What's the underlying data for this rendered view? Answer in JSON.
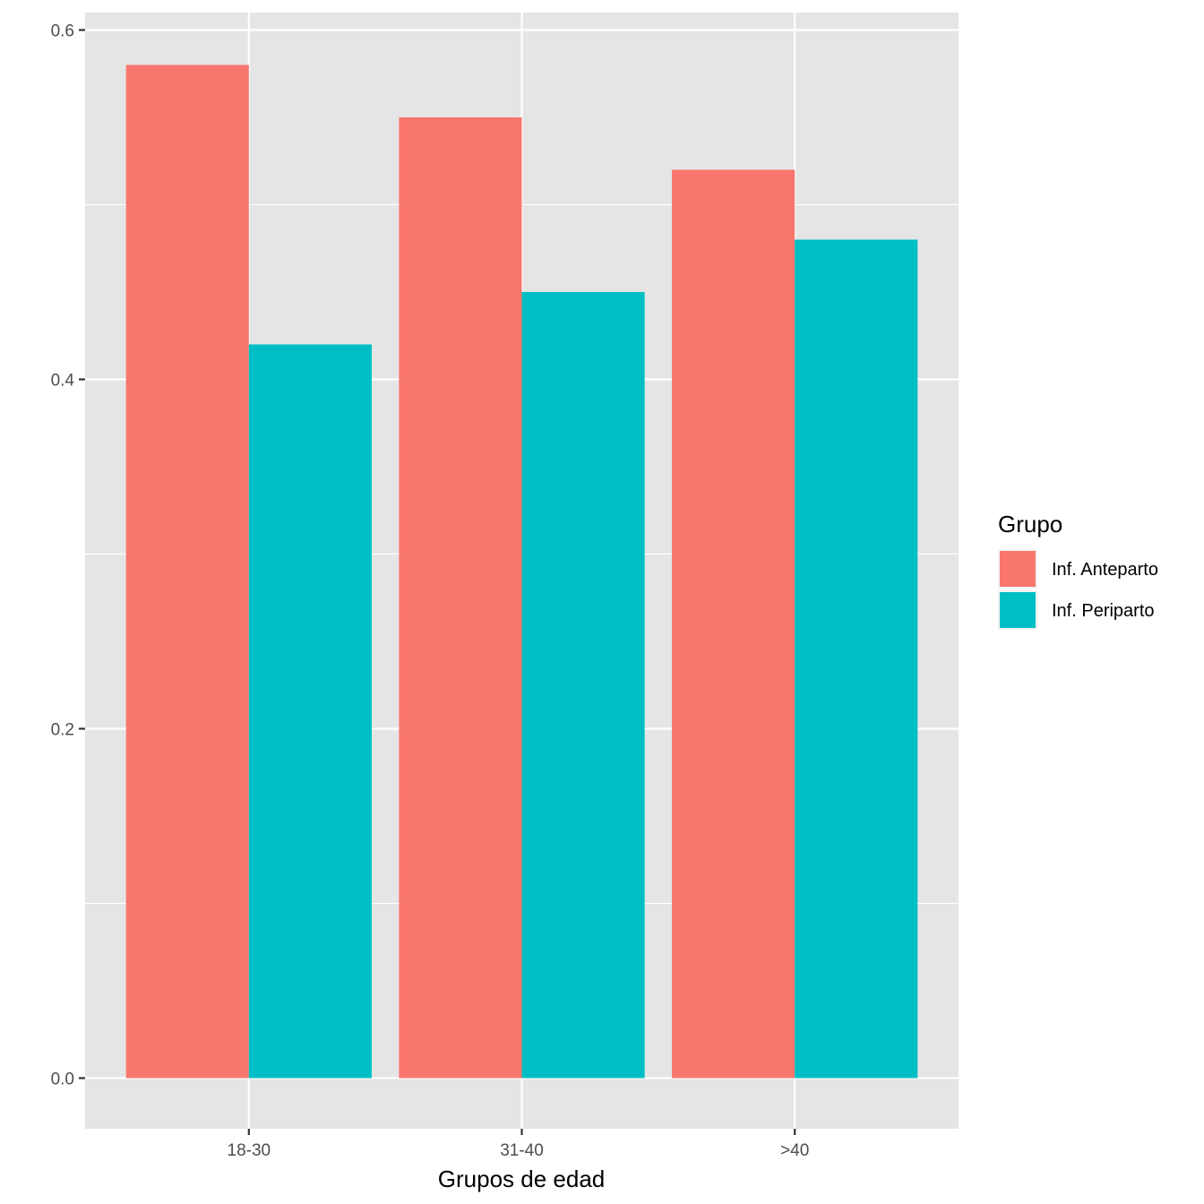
{
  "chart_data": {
    "type": "bar",
    "title": "",
    "xlabel": "Grupos de edad",
    "ylabel": "",
    "categories": [
      "18-30",
      "31-40",
      ">40"
    ],
    "series": [
      {
        "name": "Inf. Anteparto",
        "values": [
          0.58,
          0.55,
          0.52
        ],
        "color": "#F8766D"
      },
      {
        "name": "Inf. Periparto",
        "values": [
          0.42,
          0.45,
          0.48
        ],
        "color": "#00BFC4"
      }
    ],
    "ylim": [
      -0.029,
      0.61
    ],
    "yticks": [
      0.0,
      0.2,
      0.4,
      0.6
    ],
    "ytick_labels": [
      "0.0",
      "0.2",
      "0.4",
      "0.6"
    ],
    "grid": true,
    "panel_background": "#E5E5E5",
    "grid_color": "#FFFFFF",
    "legend": {
      "title": "Grupo",
      "position": "right"
    }
  }
}
